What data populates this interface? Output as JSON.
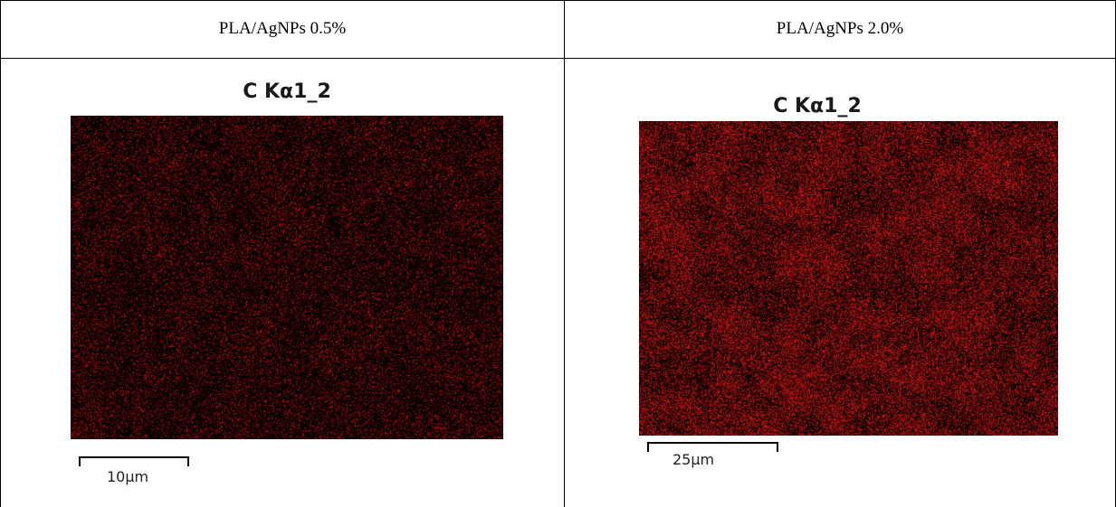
{
  "table": {
    "headers": [
      "PLA/AgNPs 0.5%",
      "PLA/AgNPs 2.0%"
    ]
  },
  "panels": [
    {
      "title": "C Kα1_2",
      "scale_label": "10µm",
      "map_color": "#c81414",
      "signal_density": 0.22
    },
    {
      "title": "C Kα1_2",
      "scale_label": "25µm",
      "map_color": "#d01818",
      "signal_density": 0.55
    }
  ]
}
